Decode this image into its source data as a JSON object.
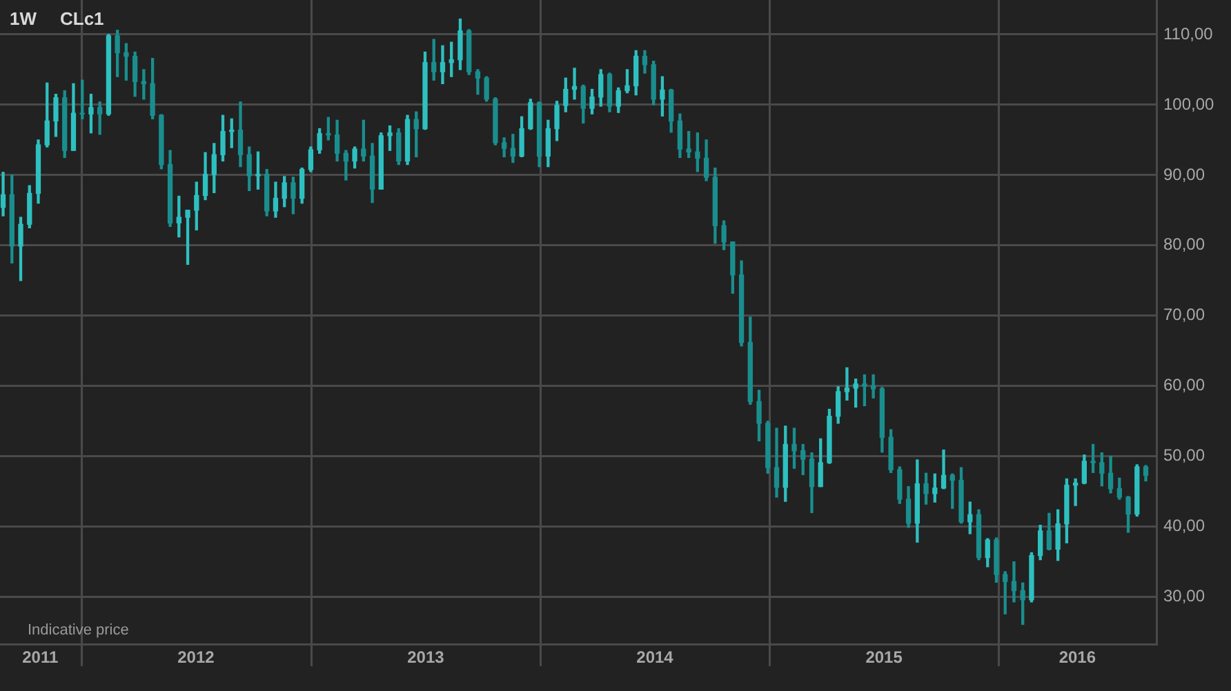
{
  "chart_data": {
    "type": "candlestick",
    "title": "CLc1",
    "subtitle": "1W",
    "annotations": [
      "Indicative price"
    ],
    "grid": true,
    "xlim": [
      "2011-08-24",
      "2016-09-08"
    ],
    "xticks": [
      {
        "value": "2011-10-27",
        "label": "2011"
      },
      {
        "value": "2012-01-01",
        "label": null
      },
      {
        "value": "2012-07-01",
        "label": "2012"
      },
      {
        "value": "2013-01-01",
        "label": null
      },
      {
        "value": "2013-07-02",
        "label": "2013"
      },
      {
        "value": "2014-01-01",
        "label": null
      },
      {
        "value": "2014-07-02",
        "label": "2014"
      },
      {
        "value": "2015-01-01",
        "label": null
      },
      {
        "value": "2015-07-02",
        "label": "2015"
      },
      {
        "value": "2016-01-01",
        "label": null
      },
      {
        "value": "2016-05-05",
        "label": "2016"
      }
    ],
    "ylim": [
      23.3,
      114.9
    ],
    "yticks": [
      {
        "value": 30,
        "label": "30,00"
      },
      {
        "value": 40,
        "label": "40,00"
      },
      {
        "value": 50,
        "label": "50,00"
      },
      {
        "value": 60,
        "label": "60,00"
      },
      {
        "value": 70,
        "label": "70,00"
      },
      {
        "value": 80,
        "label": "80,00"
      },
      {
        "value": 90,
        "label": "90,00"
      },
      {
        "value": 100,
        "label": "100,00"
      },
      {
        "value": 110,
        "label": "110,00"
      }
    ],
    "x": [
      "2011-08-29",
      "2011-09-12",
      "2011-09-26",
      "2011-10-10",
      "2011-10-24",
      "2011-11-07",
      "2011-11-21",
      "2011-12-05",
      "2011-12-19",
      "2012-01-02",
      "2012-01-16",
      "2012-01-30",
      "2012-02-13",
      "2012-02-27",
      "2012-03-12",
      "2012-03-26",
      "2012-04-09",
      "2012-04-23",
      "2012-05-07",
      "2012-05-21",
      "2012-06-04",
      "2012-06-18",
      "2012-07-02",
      "2012-07-16",
      "2012-07-30",
      "2012-08-13",
      "2012-08-27",
      "2012-09-10",
      "2012-09-24",
      "2012-10-08",
      "2012-10-22",
      "2012-11-05",
      "2012-11-19",
      "2012-12-03",
      "2012-12-17",
      "2012-12-31",
      "2013-01-14",
      "2013-01-28",
      "2013-02-11",
      "2013-02-25",
      "2013-03-11",
      "2013-03-25",
      "2013-04-08",
      "2013-04-22",
      "2013-05-06",
      "2013-05-20",
      "2013-06-03",
      "2013-06-17",
      "2013-07-01",
      "2013-07-15",
      "2013-07-29",
      "2013-08-12",
      "2013-08-26",
      "2013-09-09",
      "2013-09-23",
      "2013-10-07",
      "2013-10-21",
      "2013-11-04",
      "2013-11-18",
      "2013-12-02",
      "2013-12-16",
      "2013-12-30",
      "2014-01-13",
      "2014-01-27",
      "2014-02-10",
      "2014-02-24",
      "2014-03-10",
      "2014-03-24",
      "2014-04-07",
      "2014-04-21",
      "2014-05-05",
      "2014-05-19",
      "2014-06-02",
      "2014-06-16",
      "2014-06-30",
      "2014-07-14",
      "2014-07-28",
      "2014-08-11",
      "2014-08-25",
      "2014-09-08",
      "2014-09-22",
      "2014-10-06",
      "2014-10-20",
      "2014-11-03",
      "2014-11-17",
      "2014-12-01",
      "2014-12-15",
      "2014-12-29",
      "2015-01-12",
      "2015-01-26",
      "2015-02-09",
      "2015-02-23",
      "2015-03-09",
      "2015-03-23",
      "2015-04-06",
      "2015-04-20",
      "2015-05-04",
      "2015-05-18",
      "2015-06-01",
      "2015-06-15",
      "2015-06-29",
      "2015-07-13",
      "2015-07-27",
      "2015-08-10",
      "2015-08-24",
      "2015-09-07",
      "2015-09-21",
      "2015-10-05",
      "2015-10-19",
      "2015-11-02",
      "2015-11-16",
      "2015-11-30",
      "2015-12-14",
      "2015-12-28",
      "2016-01-11",
      "2016-01-25",
      "2016-02-08",
      "2016-02-22",
      "2016-03-07",
      "2016-03-21",
      "2016-04-04",
      "2016-04-18",
      "2016-05-02",
      "2016-05-16",
      "2016-05-30",
      "2016-06-13",
      "2016-06-27",
      "2016-07-11",
      "2016-07-25",
      "2016-08-08",
      "2016-08-22"
    ],
    "ohlc": [
      [
        85.4,
        90.4,
        84.2,
        87.2
      ],
      [
        87.2,
        90.0,
        77.5,
        79.9
      ],
      [
        79.9,
        84.0,
        75.0,
        83.0
      ],
      [
        83.0,
        88.5,
        82.5,
        87.4
      ],
      [
        87.4,
        95.0,
        86.0,
        94.3
      ],
      [
        94.3,
        103.1,
        94.0,
        97.7
      ],
      [
        97.7,
        101.5,
        95.5,
        101.0
      ],
      [
        101.0,
        102.0,
        92.5,
        93.5
      ],
      [
        93.5,
        103.0,
        93.5,
        98.8
      ],
      [
        98.8,
        103.5,
        98.0,
        98.7
      ],
      [
        98.7,
        101.5,
        96.0,
        99.6
      ],
      [
        99.6,
        100.4,
        95.8,
        98.7
      ],
      [
        98.7,
        110.0,
        98.5,
        109.8
      ],
      [
        109.8,
        110.6,
        104.0,
        107.4
      ],
      [
        107.4,
        108.7,
        103.5,
        106.9
      ],
      [
        106.9,
        107.5,
        101.2,
        103.3
      ],
      [
        103.3,
        105.0,
        100.8,
        103.0
      ],
      [
        103.0,
        106.6,
        98.0,
        98.5
      ],
      [
        98.5,
        98.6,
        90.9,
        91.5
      ],
      [
        91.5,
        93.5,
        82.7,
        83.2
      ],
      [
        83.2,
        87.0,
        81.2,
        84.0
      ],
      [
        84.0,
        85.0,
        77.3,
        85.0
      ],
      [
        85.0,
        89.0,
        82.2,
        87.1
      ],
      [
        87.1,
        93.2,
        86.5,
        90.1
      ],
      [
        90.1,
        94.5,
        87.5,
        92.9
      ],
      [
        92.9,
        98.5,
        92.0,
        96.2
      ],
      [
        96.2,
        98.0,
        93.9,
        96.4
      ],
      [
        96.4,
        100.4,
        91.2,
        92.9
      ],
      [
        92.9,
        94.0,
        87.8,
        89.9
      ],
      [
        89.9,
        93.3,
        88.0,
        90.1
      ],
      [
        90.1,
        90.8,
        84.2,
        84.9
      ],
      [
        84.9,
        89.0,
        84.0,
        86.7
      ],
      [
        86.7,
        89.8,
        85.5,
        88.9
      ],
      [
        88.9,
        89.7,
        84.5,
        86.7
      ],
      [
        86.7,
        91.0,
        86.0,
        90.8
      ],
      [
        90.8,
        94.0,
        90.5,
        93.6
      ],
      [
        93.6,
        96.6,
        93.1,
        95.9
      ],
      [
        95.9,
        98.2,
        95.0,
        95.7
      ],
      [
        95.7,
        97.8,
        92.0,
        93.1
      ],
      [
        93.1,
        93.5,
        89.3,
        92.0
      ],
      [
        92.0,
        94.0,
        91.0,
        93.7
      ],
      [
        93.7,
        97.8,
        92.0,
        92.7
      ],
      [
        92.7,
        94.5,
        86.1,
        88.0
      ],
      [
        88.0,
        96.0,
        88.0,
        95.6
      ],
      [
        95.6,
        97.0,
        93.5,
        96.0
      ],
      [
        96.0,
        96.6,
        91.5,
        92.0
      ],
      [
        92.0,
        98.5,
        91.5,
        97.9
      ],
      [
        97.9,
        99.0,
        92.6,
        96.6
      ],
      [
        96.6,
        107.5,
        96.5,
        106.0
      ],
      [
        106.0,
        109.3,
        103.5,
        104.7
      ],
      [
        104.7,
        108.4,
        103.0,
        106.0
      ],
      [
        106.0,
        108.9,
        104.0,
        106.4
      ],
      [
        106.4,
        112.2,
        105.0,
        110.5
      ],
      [
        110.5,
        110.7,
        104.3,
        104.7
      ],
      [
        104.7,
        105.0,
        101.5,
        103.8
      ],
      [
        103.8,
        104.0,
        100.5,
        100.8
      ],
      [
        100.8,
        101.0,
        94.3,
        94.6
      ],
      [
        94.6,
        95.3,
        92.6,
        93.8
      ],
      [
        93.8,
        95.8,
        91.8,
        92.7
      ],
      [
        92.7,
        98.3,
        92.6,
        96.6
      ],
      [
        96.6,
        100.8,
        96.5,
        100.3
      ],
      [
        100.3,
        100.4,
        91.2,
        92.7
      ],
      [
        92.7,
        97.8,
        91.2,
        96.6
      ],
      [
        96.6,
        100.5,
        94.9,
        99.9
      ],
      [
        99.9,
        103.8,
        99.0,
        102.2
      ],
      [
        102.2,
        105.2,
        100.8,
        102.6
      ],
      [
        102.6,
        102.8,
        97.4,
        99.5
      ],
      [
        99.5,
        102.2,
        98.7,
        101.1
      ],
      [
        101.1,
        105.0,
        99.8,
        104.3
      ],
      [
        104.3,
        104.5,
        99.0,
        99.8
      ],
      [
        99.8,
        102.4,
        98.9,
        102.0
      ],
      [
        102.0,
        105.0,
        101.7,
        102.7
      ],
      [
        102.7,
        107.7,
        101.4,
        106.9
      ],
      [
        106.9,
        107.7,
        104.5,
        105.7
      ],
      [
        105.7,
        106.2,
        100.0,
        100.8
      ],
      [
        100.8,
        104.0,
        98.4,
        102.1
      ],
      [
        102.1,
        102.2,
        96.1,
        97.7
      ],
      [
        97.7,
        98.7,
        92.5,
        93.7
      ],
      [
        93.7,
        96.2,
        92.5,
        93.3
      ],
      [
        93.3,
        96.0,
        90.5,
        92.4
      ],
      [
        92.4,
        95.0,
        89.2,
        89.7
      ],
      [
        89.7,
        91.0,
        80.3,
        82.8
      ],
      [
        82.8,
        83.5,
        79.4,
        80.5
      ],
      [
        80.5,
        80.5,
        73.2,
        75.8
      ],
      [
        75.8,
        77.8,
        65.7,
        66.2
      ],
      [
        66.2,
        69.8,
        57.4,
        57.8
      ],
      [
        57.8,
        59.4,
        52.2,
        54.7
      ],
      [
        54.7,
        55.0,
        47.6,
        48.4
      ],
      [
        48.4,
        54.0,
        44.2,
        45.6
      ],
      [
        45.6,
        54.3,
        43.6,
        51.7
      ],
      [
        51.7,
        54.0,
        48.3,
        50.8
      ],
      [
        50.8,
        51.7,
        47.4,
        49.6
      ],
      [
        49.6,
        50.5,
        42.0,
        45.7
      ],
      [
        45.7,
        52.5,
        45.7,
        49.1
      ],
      [
        49.1,
        56.7,
        49.0,
        55.7
      ],
      [
        55.7,
        59.9,
        54.7,
        59.2
      ],
      [
        59.2,
        62.6,
        58.0,
        59.7
      ],
      [
        59.7,
        61.0,
        57.0,
        60.3
      ],
      [
        60.3,
        61.6,
        57.2,
        60.0
      ],
      [
        60.0,
        61.6,
        58.3,
        59.6
      ],
      [
        59.6,
        59.8,
        50.6,
        52.7
      ],
      [
        52.7,
        53.8,
        47.7,
        48.1
      ],
      [
        48.1,
        48.5,
        43.3,
        43.9
      ],
      [
        43.9,
        45.7,
        39.9,
        40.5
      ],
      [
        40.5,
        49.5,
        37.8,
        46.1
      ],
      [
        46.1,
        47.6,
        43.2,
        44.7
      ],
      [
        44.7,
        47.5,
        43.5,
        45.5
      ],
      [
        45.5,
        50.9,
        45.4,
        47.3
      ],
      [
        47.3,
        47.5,
        42.6,
        46.6
      ],
      [
        46.6,
        48.4,
        40.5,
        40.7
      ],
      [
        40.7,
        43.5,
        39.0,
        41.7
      ],
      [
        41.7,
        42.4,
        35.3,
        35.6
      ],
      [
        35.6,
        38.3,
        34.3,
        38.1
      ],
      [
        38.1,
        38.4,
        32.1,
        33.2
      ],
      [
        33.2,
        33.6,
        27.6,
        32.2
      ],
      [
        32.2,
        35.0,
        29.3,
        30.9
      ],
      [
        30.9,
        32.0,
        26.1,
        29.6
      ],
      [
        29.6,
        36.3,
        29.3,
        35.9
      ],
      [
        35.9,
        40.2,
        35.3,
        39.4
      ],
      [
        39.4,
        41.9,
        36.7,
        36.8
      ],
      [
        36.8,
        42.4,
        35.2,
        40.4
      ],
      [
        40.4,
        46.8,
        37.7,
        45.9
      ],
      [
        45.9,
        46.8,
        43.0,
        46.2
      ],
      [
        46.2,
        50.2,
        46.1,
        49.3
      ],
      [
        49.3,
        51.7,
        47.7,
        49.1
      ],
      [
        49.1,
        50.5,
        45.8,
        47.6
      ],
      [
        47.6,
        50.0,
        44.8,
        45.4
      ],
      [
        45.4,
        46.9,
        43.9,
        44.2
      ],
      [
        44.2,
        44.3,
        39.2,
        41.8
      ],
      [
        41.8,
        48.8,
        41.5,
        48.5
      ],
      [
        48.5,
        48.7,
        46.5,
        47.3
      ]
    ],
    "colors": [
      "#2ec0c0",
      "#1a8e8e",
      "#2ec0c0",
      "#2ec0c0",
      "#2ec0c0",
      "#2ec0c0",
      "#2ec0c0",
      "#1a8e8e",
      "#2ec0c0",
      "#1a8e8e",
      "#2ec0c0",
      "#1a8e8e",
      "#2ec0c0",
      "#1a8e8e",
      "#1a8e8e",
      "#1a8e8e",
      "#1a8e8e",
      "#1a8e8e",
      "#1a8e8e",
      "#1a8e8e",
      "#2ec0c0",
      "#2ec0c0",
      "#2ec0c0",
      "#2ec0c0",
      "#2ec0c0",
      "#2ec0c0",
      "#2ec0c0",
      "#1a8e8e",
      "#1a8e8e",
      "#2ec0c0",
      "#1a8e8e",
      "#2ec0c0",
      "#2ec0c0",
      "#1a8e8e",
      "#2ec0c0",
      "#2ec0c0",
      "#2ec0c0",
      "#1a8e8e",
      "#1a8e8e",
      "#1a8e8e",
      "#2ec0c0",
      "#1a8e8e",
      "#1a8e8e",
      "#2ec0c0",
      "#2ec0c0",
      "#1a8e8e",
      "#2ec0c0",
      "#1a8e8e",
      "#2ec0c0",
      "#1a8e8e",
      "#2ec0c0",
      "#2ec0c0",
      "#2ec0c0",
      "#1a8e8e",
      "#1a8e8e",
      "#1a8e8e",
      "#1a8e8e",
      "#1a8e8e",
      "#1a8e8e",
      "#2ec0c0",
      "#2ec0c0",
      "#1a8e8e",
      "#2ec0c0",
      "#2ec0c0",
      "#2ec0c0",
      "#2ec0c0",
      "#1a8e8e",
      "#2ec0c0",
      "#2ec0c0",
      "#1a8e8e",
      "#2ec0c0",
      "#2ec0c0",
      "#2ec0c0",
      "#1a8e8e",
      "#1a8e8e",
      "#2ec0c0",
      "#1a8e8e",
      "#1a8e8e",
      "#1a8e8e",
      "#1a8e8e",
      "#1a8e8e",
      "#1a8e8e",
      "#1a8e8e",
      "#1a8e8e",
      "#1a8e8e",
      "#1a8e8e",
      "#1a8e8e",
      "#1a8e8e",
      "#1a8e8e",
      "#2ec0c0",
      "#1a8e8e",
      "#1a8e8e",
      "#1a8e8e",
      "#2ec0c0",
      "#2ec0c0",
      "#2ec0c0",
      "#2ec0c0",
      "#2ec0c0",
      "#1a8e8e",
      "#1a8e8e",
      "#1a8e8e",
      "#1a8e8e",
      "#1a8e8e",
      "#1a8e8e",
      "#2ec0c0",
      "#1a8e8e",
      "#2ec0c0",
      "#2ec0c0",
      "#1a8e8e",
      "#1a8e8e",
      "#2ec0c0",
      "#1a8e8e",
      "#2ec0c0",
      "#1a8e8e",
      "#1a8e8e",
      "#1a8e8e",
      "#1a8e8e",
      "#2ec0c0",
      "#2ec0c0",
      "#1a8e8e",
      "#2ec0c0",
      "#2ec0c0",
      "#2ec0c0",
      "#2ec0c0",
      "#1a8e8e",
      "#1a8e8e",
      "#1a8e8e",
      "#1a8e8e",
      "#1a8e8e",
      "#2ec0c0",
      "#1a8e8e"
    ]
  }
}
